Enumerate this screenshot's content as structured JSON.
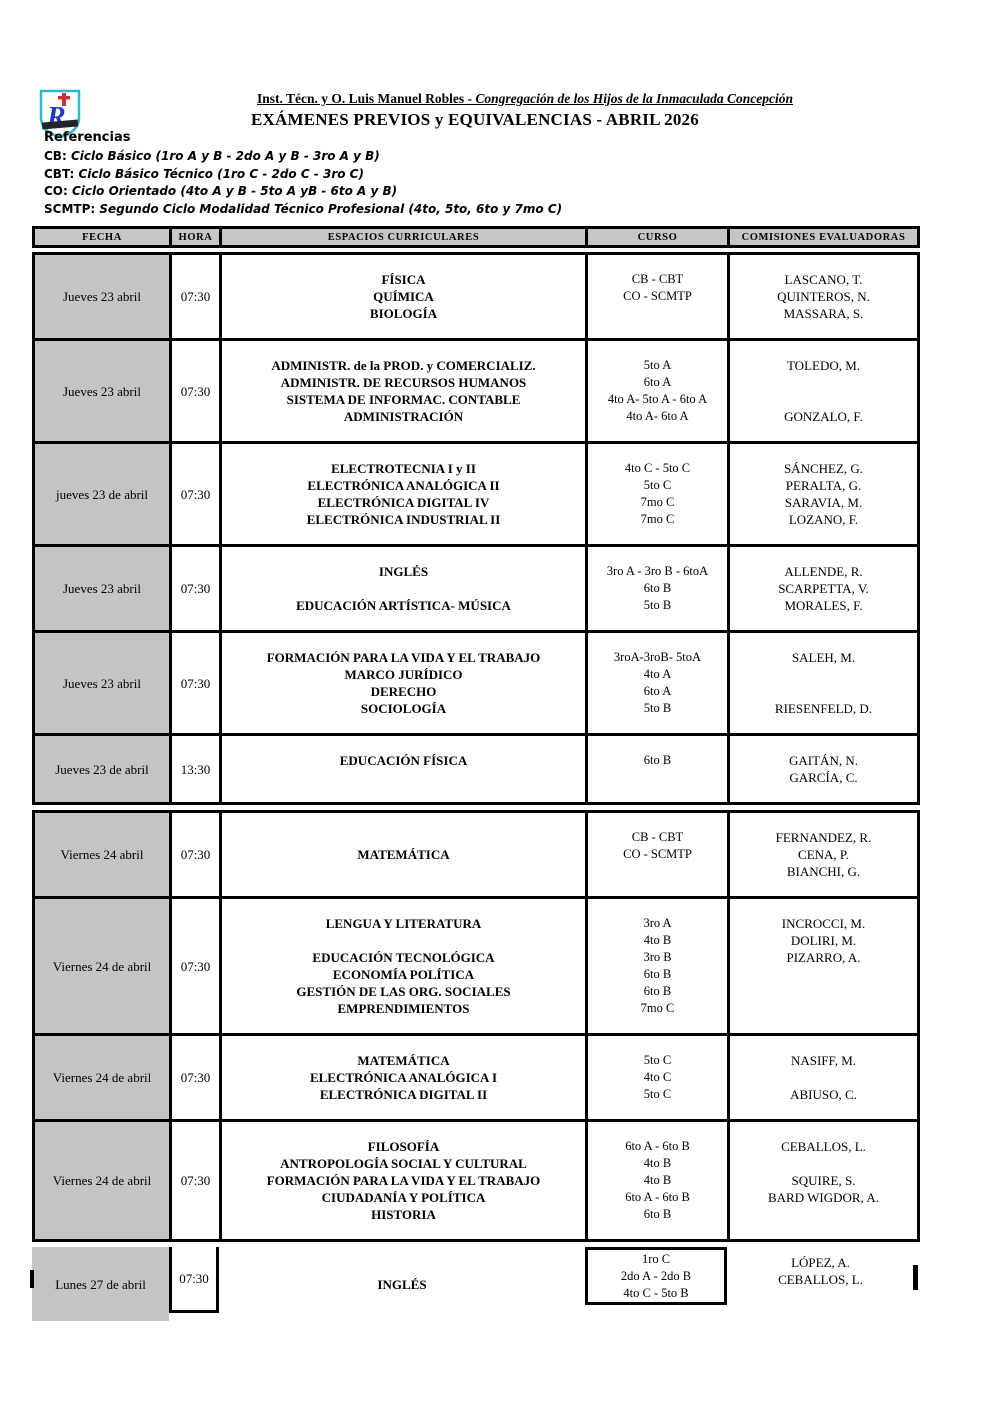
{
  "header": {
    "institution": {
      "name": "Inst. Técn. y O. Luis Manuel Robles",
      "separator": " - ",
      "congregation": "Congregación de los Hijos de la Inmaculada Concepción"
    },
    "title": "EXÁMENES PREVIOS y EQUIVALENCIAS - ABRIL 2026",
    "logo_letter": "R"
  },
  "references": {
    "heading": "Referencias",
    "items": [
      {
        "label": "CB:",
        "text": "Ciclo Básico  (1ro A y B  - 2do A y B - 3ro A y B)"
      },
      {
        "label": "CBT:",
        "text": "Ciclo Básico Técnico (1ro C - 2do C - 3ro C)"
      },
      {
        "label": "CO:",
        "text": "Ciclo Orientado (4to A y B - 5to A yB - 6to A y B)"
      },
      {
        "label": "SCMTP:",
        "text": "Segundo Ciclo Modalidad Técnico Profesional (4to, 5to, 6to y 7mo C)"
      }
    ]
  },
  "table": {
    "columns": [
      "FECHA",
      "HORA",
      "ESPACIOS CURRICULARES",
      "CURSO",
      "COMISIONES EVALUADORAS"
    ],
    "blocks": [
      {
        "rows": [
          {
            "fecha": "Jueves 23 abril",
            "hora": "07:30",
            "espacios": [
              "FÍSICA",
              "QUÍMICA",
              "BIOLOGÍA"
            ],
            "curso": [
              "CB - CBT",
              "CO - SCMTP",
              ""
            ],
            "comisiones": [
              "LASCANO, T.",
              "QUINTEROS, N.",
              "MASSARA, S."
            ]
          },
          {
            "fecha": "Jueves 23 abril",
            "hora": "07:30",
            "espacios": [
              "ADMINISTR. de la PROD. y COMERCIALIZ.",
              "ADMINISTR. DE RECURSOS HUMANOS",
              "SISTEMA DE INFORMAC. CONTABLE",
              "ADMINISTRACIÓN"
            ],
            "curso": [
              "5to A",
              "6to A",
              "4to A- 5to A - 6to A",
              "4to A- 6to A"
            ],
            "comisiones": [
              "TOLEDO, M.",
              "",
              "",
              "GONZALO, F."
            ]
          },
          {
            "fecha": "jueves 23 de abril",
            "hora": "07:30",
            "espacios": [
              "ELECTROTECNIA I  y II",
              "ELECTRÓNICA ANALÓGICA II",
              "ELECTRÓNICA DIGITAL IV",
              "ELECTRÓNICA INDUSTRIAL II"
            ],
            "curso": [
              "4to C - 5to C",
              "5to C",
              "7mo C",
              "7mo C"
            ],
            "comisiones": [
              "SÁNCHEZ, G.",
              "PERALTA, G.",
              "SARAVIA, M.",
              "LOZANO, F."
            ]
          },
          {
            "fecha": "Jueves 23 abril",
            "hora": "07:30",
            "espacios": [
              "INGLÉS",
              "",
              "EDUCACIÓN ARTÍSTICA- MÚSICA"
            ],
            "curso": [
              "3ro A - 3ro B - 6toA",
              "6to B",
              "5to B"
            ],
            "comisiones": [
              "ALLENDE, R.",
              "SCARPETTA, V.",
              "MORALES, F."
            ]
          },
          {
            "fecha": "Jueves 23 abril",
            "hora": "07:30",
            "espacios": [
              "FORMACIÓN PARA LA VIDA Y EL TRABAJO",
              "MARCO JURÍDICO",
              "DERECHO",
              "SOCIOLOGÍA"
            ],
            "curso": [
              "3roA-3roB- 5toA",
              "4to A",
              "6to A",
              "5to B"
            ],
            "comisiones": [
              "SALEH, M.",
              "",
              "",
              "RIESENFELD, D."
            ]
          },
          {
            "fecha": "Jueves 23 de abril",
            "hora": "13:30",
            "espacios": [
              "EDUCACIÓN FÍSICA",
              ""
            ],
            "curso": [
              "6to B",
              ""
            ],
            "comisiones": [
              "GAITÁN, N.",
              "GARCÍA, C."
            ]
          }
        ]
      },
      {
        "rows": [
          {
            "fecha": "Viernes 24 abril",
            "hora": "07:30",
            "espacios": [
              "",
              "MATEMÁTICA",
              ""
            ],
            "curso": [
              "CB - CBT",
              "CO - SCMTP",
              ""
            ],
            "comisiones": [
              "FERNANDEZ, R.",
              "CENA, P.",
              "BIANCHI, G."
            ]
          },
          {
            "fecha": "Viernes 24 de abril",
            "hora": "07:30",
            "espacios": [
              "LENGUA Y LITERATURA",
              "",
              "EDUCACIÓN TECNOLÓGICA",
              "ECONOMÍA POLÍTICA",
              "GESTIÓN DE LAS ORG. SOCIALES",
              "EMPRENDIMIENTOS"
            ],
            "curso": [
              "3ro A",
              "4to B",
              "3ro B",
              "6to B",
              "6to B",
              "7mo C"
            ],
            "comisiones": [
              "INCROCCI, M.",
              "DOLIRI, M.",
              "PIZARRO, A.",
              "",
              "",
              ""
            ]
          },
          {
            "fecha": "Viernes 24 de abril",
            "hora": "07:30",
            "espacios": [
              "MATEMÁTICA",
              "ELECTRÓNICA ANALÓGICA I",
              "ELECTRÓNICA DIGITAL II"
            ],
            "curso": [
              "5to C",
              "4to C",
              "5to C"
            ],
            "comisiones": [
              "NASIFF, M.",
              "",
              "ABIUSO, C."
            ]
          },
          {
            "fecha": "Viernes 24 de abril",
            "hora": "07:30",
            "espacios": [
              "FILOSOFÍA",
              "ANTROPOLOGÍA SOCIAL Y CULTURAL",
              "FORMACIÓN PARA LA VIDA Y EL TRABAJO",
              "CIUDADANÍA Y POLÍTICA",
              "HISTORIA"
            ],
            "curso": [
              "6to A - 6to B",
              "4to B",
              "4to B",
              "6to A - 6to B",
              "6to B"
            ],
            "comisiones": [
              "CEBALLOS, L.",
              "",
              "SQUIRE, S.",
              "BARD WIGDOR, A.",
              ""
            ]
          }
        ]
      }
    ],
    "last_row": {
      "fecha": "Lunes 27 de abril",
      "hora": "07:30",
      "espacios": [
        "",
        "INGLÉS",
        ""
      ],
      "curso": [
        "1ro C",
        "2do A - 2do B",
        "4to C - 5to B"
      ],
      "comisiones": [
        "LÓPEZ, A.",
        "CEBALLOS, L.",
        ""
      ]
    }
  }
}
